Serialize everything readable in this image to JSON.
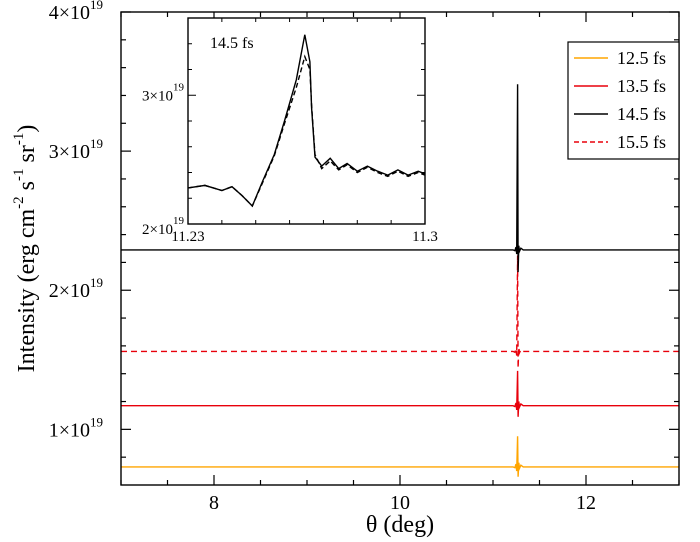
{
  "chart_data": [
    {
      "type": "line",
      "xlabel": "θ (deg)",
      "ylabel": {
        "parts": [
          "Intensity (erg cm",
          "-2",
          " s",
          "-1",
          " sr",
          "-1",
          ")"
        ]
      },
      "xlim": [
        7.0,
        13.0
      ],
      "ylim": [
        6e+18,
        4e+19
      ],
      "x_ticks": [
        8,
        10,
        12
      ],
      "x_tick_labels": [
        "8",
        "10",
        "12"
      ],
      "y_ticks": [
        1e+19,
        2e+19,
        3e+19,
        4e+19
      ],
      "y_tick_labels": [
        {
          "mantissa": "1×10",
          "exp": "19"
        },
        {
          "mantissa": "2×10",
          "exp": "19"
        },
        {
          "mantissa": "3×10",
          "exp": "19"
        },
        {
          "mantissa": "4×10",
          "exp": "19"
        }
      ],
      "peak_x": 11.265,
      "legend_position": "top-right",
      "series": [
        {
          "name": "12.5 fs",
          "color": "#FFA500",
          "dash": "solid",
          "baseline": 7.3e+18,
          "peak": 9.5e+18,
          "dip": 6.6e+18
        },
        {
          "name": "13.5 fs",
          "color": "#E8000B",
          "dash": "solid",
          "baseline": 1.17e+19,
          "peak": 1.42e+19,
          "dip": 1.09e+19
        },
        {
          "name": "14.5 fs",
          "color": "#000000",
          "dash": "solid",
          "baseline": 2.29e+19,
          "peak": 3.48e+19,
          "dip": 2.13e+19
        },
        {
          "name": "15.5 fs",
          "color": "#E8000B",
          "dash": "dashed",
          "baseline": 1.56e+19,
          "peak": 2.25e+19,
          "dip": 1.44e+19
        }
      ]
    },
    {
      "type": "line",
      "annotation": "14.5 fs",
      "xlim": [
        11.23,
        11.3
      ],
      "ylim": [
        2e+19,
        3.6e+19
      ],
      "x_tick_labels": [
        "11.23",
        "11.3"
      ],
      "y_ticks": [
        2e+19,
        3e+19
      ],
      "y_tick_labels": [
        {
          "mantissa": "2×10",
          "exp": "19"
        },
        {
          "mantissa": "3×10",
          "exp": "19"
        }
      ],
      "series": [
        {
          "color": "#000000",
          "dash": "solid",
          "x": [
            11.23,
            11.235,
            11.24,
            11.243,
            11.246,
            11.249,
            11.252,
            11.2555,
            11.2585,
            11.262,
            11.2645,
            11.266,
            11.2665,
            11.2675,
            11.2695,
            11.272,
            11.2745,
            11.277,
            11.28,
            11.283,
            11.286,
            11.289,
            11.292,
            11.295,
            11.298,
            11.3
          ],
          "y": [
            2.28e+19,
            2.3e+19,
            2.26e+19,
            2.29e+19,
            2.22e+19,
            2.14e+19,
            2.33e+19,
            2.54e+19,
            2.8e+19,
            3.12e+19,
            3.47e+19,
            3.26e+19,
            2.9e+19,
            2.52e+19,
            2.45e+19,
            2.51e+19,
            2.43e+19,
            2.47e+19,
            2.41e+19,
            2.45e+19,
            2.41e+19,
            2.38e+19,
            2.42e+19,
            2.38e+19,
            2.41e+19,
            2.39e+19
          ]
        },
        {
          "color": "#000000",
          "dash": "dashed",
          "x": [
            11.23,
            11.235,
            11.24,
            11.243,
            11.246,
            11.249,
            11.252,
            11.2555,
            11.2585,
            11.262,
            11.2645,
            11.266,
            11.2665,
            11.2675,
            11.2695,
            11.272,
            11.2745,
            11.277,
            11.28,
            11.283,
            11.286,
            11.289,
            11.292,
            11.295,
            11.298,
            11.3
          ],
          "y": [
            2.28e+19,
            2.3e+19,
            2.26e+19,
            2.29e+19,
            2.22e+19,
            2.14e+19,
            2.32e+19,
            2.53e+19,
            2.78e+19,
            3.06e+19,
            3.3e+19,
            3.2e+19,
            2.92e+19,
            2.54e+19,
            2.43e+19,
            2.49e+19,
            2.42e+19,
            2.46e+19,
            2.4e+19,
            2.44e+19,
            2.4e+19,
            2.37e+19,
            2.41e+19,
            2.37e+19,
            2.4e+19,
            2.38e+19
          ]
        }
      ]
    }
  ]
}
